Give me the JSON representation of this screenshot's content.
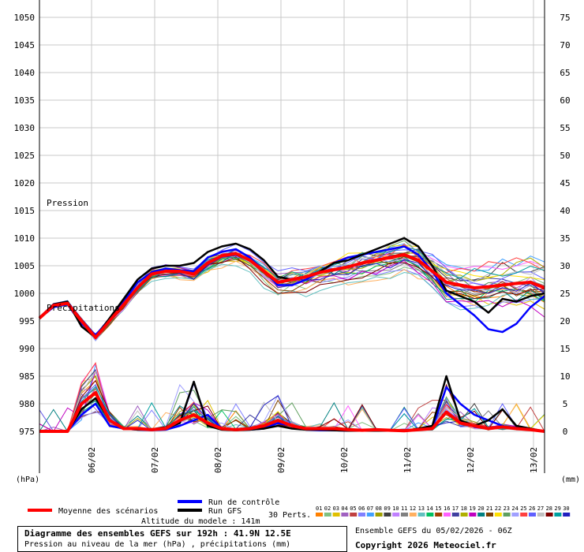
{
  "chart_data": {
    "type": "line",
    "x_dates": [
      "06/02",
      "07/02",
      "08/02",
      "09/02",
      "10/02",
      "11/02",
      "12/02",
      "13/02"
    ],
    "left_axis": {
      "label": "(hPa)",
      "ylim": [
        975,
        1050
      ],
      "ticks": [
        975,
        980,
        985,
        990,
        995,
        1000,
        1005,
        1010,
        1015,
        1020,
        1025,
        1030,
        1035,
        1040,
        1045,
        1050
      ]
    },
    "right_axis": {
      "label": "(mm)",
      "ylim": [
        0,
        75
      ],
      "ticks": [
        0,
        5,
        10,
        15,
        20,
        25,
        30,
        35,
        40,
        45,
        50,
        55,
        60,
        65,
        70,
        75
      ]
    },
    "pressure_label": "Pression",
    "precip_label": "Précipitations",
    "mean_pressure": [
      995.5,
      997.8,
      998.2,
      995.0,
      992.0,
      995.0,
      998.0,
      1001.0,
      1003.5,
      1004.0,
      1004.0,
      1003.5,
      1005.5,
      1006.8,
      1007.2,
      1006.0,
      1004.0,
      1002.0,
      1002.5,
      1003.0,
      1003.8,
      1004.3,
      1004.8,
      1005.5,
      1006.0,
      1006.5,
      1007.0,
      1006.0,
      1004.0,
      1002.0,
      1001.5,
      1001.0,
      1001.2,
      1001.5,
      1001.8,
      1002.0,
      1001.0
    ],
    "gfs_pressure": [
      995.5,
      998.0,
      998.5,
      994.0,
      992.0,
      995.5,
      999.0,
      1002.5,
      1004.5,
      1005.0,
      1005.0,
      1005.5,
      1007.5,
      1008.5,
      1009.0,
      1008.0,
      1006.0,
      1003.0,
      1002.5,
      1003.0,
      1004.0,
      1005.5,
      1006.0,
      1007.0,
      1008.0,
      1009.0,
      1010.0,
      1008.5,
      1005.0,
      1000.5,
      999.5,
      998.5,
      996.5,
      999.0,
      998.5,
      999.5,
      1000.0
    ],
    "control_pressure": [
      995.5,
      997.5,
      998.0,
      994.5,
      992.5,
      995.0,
      998.5,
      1002.0,
      1003.8,
      1004.5,
      1004.2,
      1004.0,
      1006.5,
      1007.5,
      1008.0,
      1006.5,
      1004.0,
      1001.5,
      1001.5,
      1002.5,
      1004.0,
      1005.5,
      1006.5,
      1007.0,
      1007.5,
      1008.0,
      1008.5,
      1007.0,
      1004.0,
      1000.0,
      998.0,
      996.0,
      993.5,
      993.0,
      994.5,
      997.5,
      999.5
    ],
    "mean_precip": [
      0,
      0,
      0,
      5,
      7,
      2,
      0.5,
      0.5,
      0.3,
      0.5,
      2,
      3,
      1.5,
      0.5,
      0.3,
      0.5,
      1,
      2,
      1,
      0.5,
      0.5,
      0.5,
      0.3,
      0.2,
      0.3,
      0.2,
      0.1,
      0.3,
      0.5,
      3.5,
      1.5,
      1,
      0.5,
      0.8,
      0.5,
      0.3,
      0
    ],
    "gfs_precip": [
      0,
      0,
      0,
      4,
      6,
      2,
      0.5,
      0.3,
      0.3,
      0.5,
      1.5,
      9,
      1,
      0.3,
      0.2,
      0.3,
      0.5,
      1,
      0.5,
      0.3,
      0.3,
      0.2,
      0.1,
      0.1,
      0.1,
      0.1,
      0.1,
      0.5,
      1,
      10,
      2,
      1,
      2,
      4,
      1,
      0.5,
      0
    ],
    "control_precip": [
      0,
      0,
      0,
      3,
      5,
      1,
      0.5,
      0.3,
      0.2,
      0.3,
      1,
      2,
      3,
      0.5,
      0.3,
      0.3,
      0.5,
      1.5,
      1,
      0.3,
      0.2,
      0.2,
      0.1,
      0.1,
      0.2,
      0.1,
      0.1,
      0.3,
      0.5,
      8,
      5,
      3,
      2,
      1,
      0.5,
      0.3,
      0
    ],
    "colors": {
      "mean": "#ff0000",
      "gfs": "#000000",
      "control": "#0000ff",
      "grid": "#c8c8c8",
      "perts": [
        "#ff8000",
        "#80c080",
        "#e0c000",
        "#a060c0",
        "#c04040",
        "#8080ff",
        "#40a0ff",
        "#a0a000",
        "#404040",
        "#c080ff",
        "#808080",
        "#ffb060",
        "#60c0c0",
        "#00c060",
        "#a04000",
        "#ff60ff",
        "#4040a0",
        "#b0b000",
        "#c000c0",
        "#008080",
        "#804000",
        "#ffe000",
        "#60a060",
        "#a0a0ff",
        "#ff4040",
        "#6060ff",
        "#c0c0c0",
        "#800000",
        "#00a0a0",
        "#2020c0"
      ]
    }
  },
  "legend": {
    "mean_label": "Moyenne des scénarios",
    "control_label": "Run de contrôle",
    "gfs_label": "Run GFS",
    "perts_label": "30 Perts.",
    "pert_numbers": [
      "01",
      "02",
      "03",
      "04",
      "05",
      "06",
      "07",
      "08",
      "09",
      "10",
      "11",
      "12",
      "13",
      "14",
      "15",
      "16",
      "17",
      "18",
      "19",
      "20",
      "21",
      "22",
      "23",
      "24",
      "25",
      "26",
      "27",
      "28",
      "29",
      "30"
    ]
  },
  "footer": {
    "altitude": "Altitude du modele : 141m",
    "title": "Diagramme des ensembles GEFS sur 192h : 41.9N 12.5E",
    "subtitle": "Pression au niveau de la mer (hPa) , précipitations (mm)",
    "run_info": "Ensemble GEFS du 05/02/2026 - 06Z",
    "copyright": "Copyright 2026 Meteociel.fr"
  }
}
